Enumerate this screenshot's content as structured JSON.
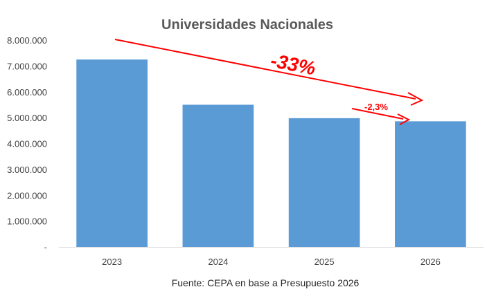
{
  "chart_data": {
    "type": "bar",
    "title": "Universidades Nacionales",
    "categories": [
      "2023",
      "2024",
      "2025",
      "2026"
    ],
    "values": [
      7250000,
      5500000,
      4980000,
      4860000
    ],
    "ylim": [
      0,
      8000000
    ],
    "yticks": [
      0,
      1000000,
      2000000,
      3000000,
      4000000,
      5000000,
      6000000,
      7000000,
      8000000
    ],
    "ytick_labels": [
      "-",
      "1.000.000",
      "2.000.000",
      "3.000.000",
      "4.000.000",
      "5.000.000",
      "6.000.000",
      "7.000.000",
      "8.000.000"
    ],
    "xlabel": "",
    "ylabel": "",
    "grid": false,
    "bar_color": "#5b9bd5",
    "annotations": [
      {
        "text": "-33%",
        "from": "2023",
        "to": "2026",
        "color": "#ff0000"
      },
      {
        "text": "-2,3%",
        "from": "2025",
        "to": "2026",
        "color": "#ff0000"
      }
    ]
  },
  "footer": {
    "source": "Fuente: CEPA en base a Presupuesto 2026"
  }
}
